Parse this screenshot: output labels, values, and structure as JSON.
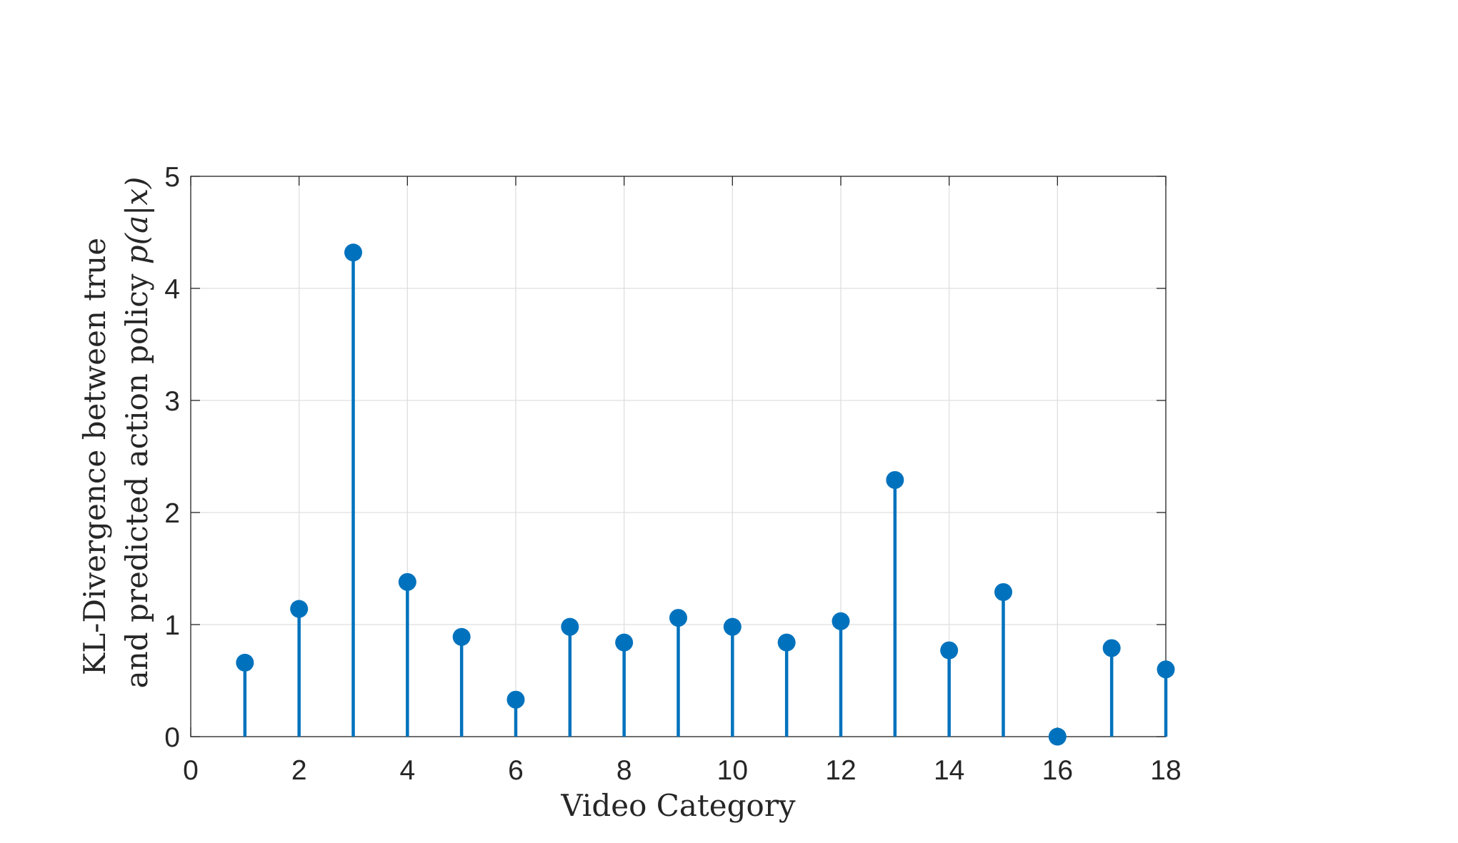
{
  "chart_data": {
    "type": "stem",
    "xlabel": "Video Category",
    "ylabel_line1": "KL-Divergence between true",
    "ylabel_line2_text": "and predicted action policy ",
    "ylabel_line2_math": "p(a|x)",
    "xlim": [
      0,
      18
    ],
    "ylim": [
      0,
      5
    ],
    "xticks": [
      0,
      2,
      4,
      6,
      8,
      10,
      12,
      14,
      16,
      18
    ],
    "yticks": [
      0,
      1,
      2,
      3,
      4,
      5
    ],
    "grid": true,
    "color": "#0072BD",
    "x": [
      1,
      2,
      3,
      4,
      5,
      6,
      7,
      8,
      9,
      10,
      11,
      12,
      13,
      14,
      15,
      16,
      17,
      18
    ],
    "values": [
      0.66,
      1.14,
      4.32,
      1.38,
      0.89,
      0.33,
      0.98,
      0.84,
      1.06,
      0.98,
      0.84,
      1.03,
      2.29,
      0.77,
      1.29,
      0.0,
      0.79,
      0.6
    ]
  }
}
